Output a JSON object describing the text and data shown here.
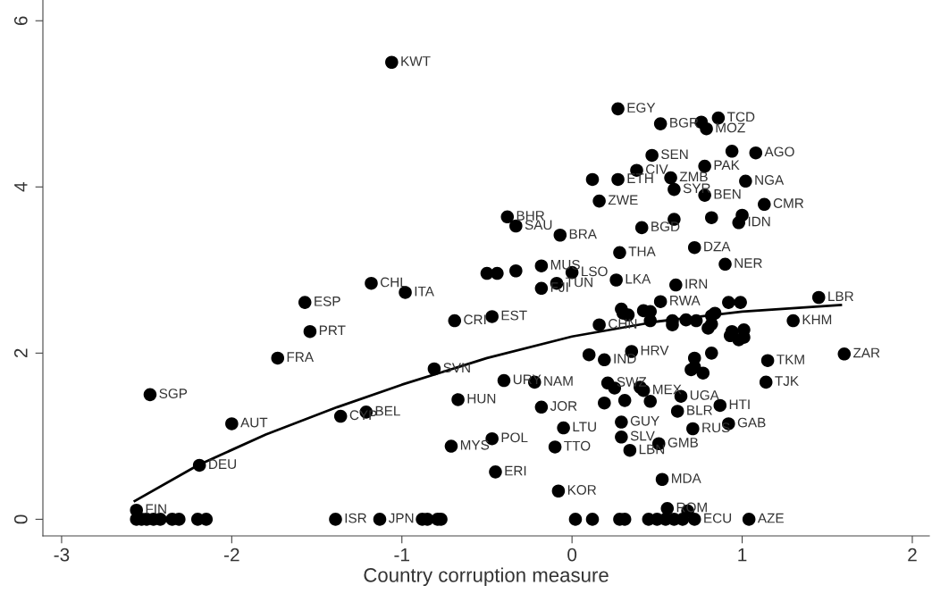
{
  "chart_data": {
    "type": "scatter",
    "xlabel": "Country corruption measure",
    "xlim": [
      -3.11,
      2.1
    ],
    "ylim": [
      -0.2,
      6.25
    ],
    "xticks": [
      -3,
      -2,
      -1,
      0,
      1,
      2
    ],
    "yticks": [
      0,
      2,
      4,
      6
    ],
    "grid": false,
    "marker": "circle",
    "series": [
      {
        "color": "#000000",
        "x": [
          -1.06,
          0.27,
          0.52,
          0.86,
          0.79,
          0.76,
          0.47,
          1.08,
          0.94,
          0.78,
          0.38,
          0.12,
          0.27,
          0.58,
          0.6,
          1.02,
          0.78,
          0.16,
          1.13,
          -0.38,
          -0.33,
          -0.07,
          1.0,
          0.98,
          0.82,
          0.6,
          0.41,
          0.28,
          0.72,
          0.9,
          -0.18,
          0.0,
          0.26,
          -0.09,
          -0.18,
          -0.5,
          -0.44,
          -0.33,
          0.61,
          0.52,
          0.92,
          0.99,
          1.45,
          -1.57,
          -1.54,
          -1.18,
          -0.98,
          -0.69,
          -0.47,
          0.16,
          1.3,
          1.6,
          1.15,
          1.14,
          0.35,
          0.1,
          0.19,
          -0.67,
          -0.81,
          -0.4,
          -0.22,
          -0.18,
          0.21,
          0.42,
          0.64,
          0.87,
          0.62,
          0.19,
          0.29,
          0.71,
          0.92,
          -0.05,
          -0.47,
          -0.1,
          0.29,
          0.34,
          0.51,
          -0.71,
          -0.45,
          -0.08,
          0.53,
          0.56,
          0.68,
          -1.36,
          -1.21,
          -2.0,
          -2.48,
          -1.73,
          -2.19,
          -2.56,
          0.29,
          0.3,
          0.33,
          0.42,
          0.46,
          0.46,
          0.59,
          0.59,
          0.67,
          0.73,
          0.8,
          0.82,
          0.84,
          0.93,
          0.94,
          0.98,
          1.01,
          1.01,
          0.82,
          0.72,
          0.82,
          0.72,
          0.77,
          0.7,
          0.25,
          0.4,
          0.46,
          0.31,
          -2.56,
          -2.53,
          -2.5,
          -2.46,
          -2.42,
          -2.35,
          -2.31,
          -2.2,
          -2.15,
          -1.39,
          -1.13,
          -0.88,
          -0.85,
          -0.79,
          -0.77,
          0.02,
          0.12,
          0.28,
          0.31,
          0.45,
          0.5,
          0.55,
          0.6,
          0.65,
          0.72,
          1.04
        ],
        "values": [
          5.5,
          4.94,
          4.76,
          4.83,
          4.7,
          4.78,
          4.38,
          4.41,
          4.43,
          4.25,
          4.2,
          4.09,
          4.09,
          4.11,
          3.97,
          4.07,
          3.9,
          3.83,
          3.79,
          3.64,
          3.53,
          3.42,
          3.66,
          3.57,
          3.63,
          3.61,
          3.51,
          3.21,
          3.27,
          3.07,
          3.05,
          2.97,
          2.88,
          2.84,
          2.78,
          2.96,
          2.96,
          2.99,
          2.82,
          2.62,
          2.61,
          2.61,
          2.67,
          2.61,
          2.26,
          2.84,
          2.73,
          2.39,
          2.44,
          2.34,
          2.39,
          1.99,
          1.91,
          1.65,
          2.02,
          1.98,
          1.92,
          1.44,
          1.81,
          1.67,
          1.65,
          1.35,
          1.64,
          1.55,
          1.48,
          1.37,
          1.3,
          1.4,
          1.17,
          1.09,
          1.15,
          1.1,
          0.97,
          0.87,
          0.99,
          0.83,
          0.91,
          0.88,
          0.57,
          0.34,
          0.48,
          0.13,
          0.1,
          1.24,
          1.29,
          1.15,
          1.5,
          1.94,
          0.65,
          0.11,
          2.53,
          2.48,
          2.46,
          2.51,
          2.5,
          2.39,
          2.34,
          2.39,
          2.4,
          2.39,
          2.3,
          2.45,
          2.48,
          2.21,
          2.26,
          2.16,
          2.19,
          2.28,
          2.35,
          1.94,
          2.0,
          1.83,
          1.76,
          1.8,
          1.58,
          1.59,
          1.42,
          1.43,
          0,
          0,
          0,
          0,
          0,
          0,
          0,
          0,
          0,
          0,
          0,
          0,
          0,
          0,
          0,
          0,
          0,
          0,
          0,
          0,
          0,
          0,
          0,
          0,
          0,
          0
        ]
      },
      {
        "type": "line",
        "color": "#000000",
        "marker": "none",
        "x": [
          -2.57,
          -2.2,
          -1.8,
          -1.38,
          -1.0,
          -0.5,
          0.0,
          0.5,
          1.0,
          1.58
        ],
        "values": [
          0.22,
          0.65,
          1.02,
          1.35,
          1.62,
          1.94,
          2.2,
          2.38,
          2.5,
          2.58
        ]
      }
    ],
    "annotations": [
      {
        "text": "KWT",
        "x": -1.06,
        "y": 5.5
      },
      {
        "text": "EGY",
        "x": 0.27,
        "y": 4.94
      },
      {
        "text": "BGR",
        "x": 0.52,
        "y": 4.76
      },
      {
        "text": "TCD",
        "x": 0.86,
        "y": 4.83
      },
      {
        "text": "MOZ",
        "x": 0.79,
        "y": 4.7
      },
      {
        "text": "SEN",
        "x": 0.47,
        "y": 4.38
      },
      {
        "text": "AGO",
        "x": 1.08,
        "y": 4.41
      },
      {
        "text": "PAK",
        "x": 0.78,
        "y": 4.25
      },
      {
        "text": "CIV",
        "x": 0.38,
        "y": 4.2
      },
      {
        "text": "ETH",
        "x": 0.27,
        "y": 4.09
      },
      {
        "text": "ZMB",
        "x": 0.58,
        "y": 4.11
      },
      {
        "text": "SYR",
        "x": 0.6,
        "y": 3.97
      },
      {
        "text": "NGA",
        "x": 1.02,
        "y": 4.07
      },
      {
        "text": "BEN",
        "x": 0.78,
        "y": 3.9
      },
      {
        "text": "ZWE",
        "x": 0.16,
        "y": 3.83
      },
      {
        "text": "CMR",
        "x": 1.13,
        "y": 3.79
      },
      {
        "text": "BHR",
        "x": -0.38,
        "y": 3.64
      },
      {
        "text": "SAU",
        "x": -0.33,
        "y": 3.53
      },
      {
        "text": "BRA",
        "x": -0.07,
        "y": 3.42
      },
      {
        "text": "IDN",
        "x": 0.98,
        "y": 3.57
      },
      {
        "text": "BGD",
        "x": 0.41,
        "y": 3.51
      },
      {
        "text": "THA",
        "x": 0.28,
        "y": 3.21
      },
      {
        "text": "DZA",
        "x": 0.72,
        "y": 3.27
      },
      {
        "text": "NER",
        "x": 0.9,
        "y": 3.07
      },
      {
        "text": "MUS",
        "x": -0.18,
        "y": 3.05
      },
      {
        "text": "LSO",
        "x": 0.0,
        "y": 2.97
      },
      {
        "text": "LKA",
        "x": 0.26,
        "y": 2.88
      },
      {
        "text": "TUN",
        "x": -0.09,
        "y": 2.84
      },
      {
        "text": "FJI",
        "x": -0.18,
        "y": 2.78
      },
      {
        "text": "IRN",
        "x": 0.61,
        "y": 2.82
      },
      {
        "text": "RWA",
        "x": 0.52,
        "y": 2.62
      },
      {
        "text": "LBR",
        "x": 1.45,
        "y": 2.67
      },
      {
        "text": "ESP",
        "x": -1.57,
        "y": 2.61
      },
      {
        "text": "PRT",
        "x": -1.54,
        "y": 2.26
      },
      {
        "text": "CHL",
        "x": -1.18,
        "y": 2.84
      },
      {
        "text": "ITA",
        "x": -0.98,
        "y": 2.73
      },
      {
        "text": "CRI",
        "x": -0.69,
        "y": 2.39
      },
      {
        "text": "EST",
        "x": -0.47,
        "y": 2.44
      },
      {
        "text": "CHN",
        "x": 0.16,
        "y": 2.34
      },
      {
        "text": "KHM",
        "x": 1.3,
        "y": 2.39
      },
      {
        "text": "ZAR",
        "x": 1.6,
        "y": 1.99
      },
      {
        "text": "TKM",
        "x": 1.15,
        "y": 1.91
      },
      {
        "text": "TJK",
        "x": 1.14,
        "y": 1.65
      },
      {
        "text": "HRV",
        "x": 0.35,
        "y": 2.02
      },
      {
        "text": "IND",
        "x": 0.19,
        "y": 1.92
      },
      {
        "text": "HUN",
        "x": -0.67,
        "y": 1.44
      },
      {
        "text": "SVN",
        "x": -0.81,
        "y": 1.81
      },
      {
        "text": "URY",
        "x": -0.4,
        "y": 1.67
      },
      {
        "text": "NAM",
        "x": -0.22,
        "y": 1.65
      },
      {
        "text": "JOR",
        "x": -0.18,
        "y": 1.35
      },
      {
        "text": "SWZ",
        "x": 0.21,
        "y": 1.64
      },
      {
        "text": "MEX",
        "x": 0.42,
        "y": 1.55
      },
      {
        "text": "UGA",
        "x": 0.64,
        "y": 1.48
      },
      {
        "text": "HTI",
        "x": 0.87,
        "y": 1.37
      },
      {
        "text": "BLR",
        "x": 0.62,
        "y": 1.3
      },
      {
        "text": "GUY",
        "x": 0.29,
        "y": 1.17
      },
      {
        "text": "RUS",
        "x": 0.71,
        "y": 1.09
      },
      {
        "text": "GAB",
        "x": 0.92,
        "y": 1.15
      },
      {
        "text": "LTU",
        "x": -0.05,
        "y": 1.1
      },
      {
        "text": "POL",
        "x": -0.47,
        "y": 0.97
      },
      {
        "text": "TTO",
        "x": -0.1,
        "y": 0.87
      },
      {
        "text": "SLV",
        "x": 0.29,
        "y": 0.99
      },
      {
        "text": "LBN",
        "x": 0.34,
        "y": 0.83
      },
      {
        "text": "GMB",
        "x": 0.51,
        "y": 0.91
      },
      {
        "text": "MYS",
        "x": -0.71,
        "y": 0.88
      },
      {
        "text": "ERI",
        "x": -0.45,
        "y": 0.57
      },
      {
        "text": "KOR",
        "x": -0.08,
        "y": 0.34
      },
      {
        "text": "MDA",
        "x": 0.53,
        "y": 0.48
      },
      {
        "text": "ROM",
        "x": 0.56,
        "y": 0.13
      },
      {
        "text": "CYP",
        "x": -1.36,
        "y": 1.24
      },
      {
        "text": "BEL",
        "x": -1.21,
        "y": 1.29
      },
      {
        "text": "AUT",
        "x": -2.0,
        "y": 1.15
      },
      {
        "text": "SGP",
        "x": -2.48,
        "y": 1.5
      },
      {
        "text": "FRA",
        "x": -1.73,
        "y": 1.94
      },
      {
        "text": "DEU",
        "x": -2.19,
        "y": 0.65
      },
      {
        "text": "FIN",
        "x": -2.56,
        "y": 0.11
      },
      {
        "text": "ISR",
        "x": -1.39,
        "y": 0
      },
      {
        "text": "JPN",
        "x": -1.13,
        "y": 0
      },
      {
        "text": "ECU",
        "x": 0.72,
        "y": 0
      },
      {
        "text": "AZE",
        "x": 1.04,
        "y": 0
      }
    ]
  }
}
